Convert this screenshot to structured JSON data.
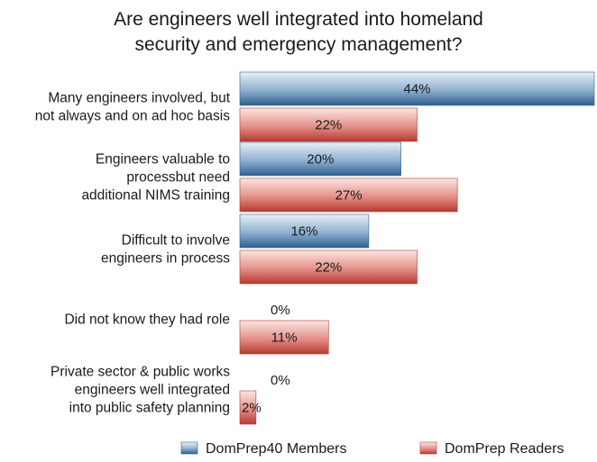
{
  "chart_data": {
    "type": "bar",
    "orientation": "horizontal",
    "title": [
      "Are engineers well integrated into homeland",
      "security and emergency management?"
    ],
    "categories": [
      [
        "Many engineers involved, but",
        "not always and on ad hoc basis"
      ],
      [
        "Engineers valuable to",
        "processbut need",
        "additional NIMS training"
      ],
      [
        "Difficult to involve",
        "engineers in process"
      ],
      [
        "Did not know they had role"
      ],
      [
        "Private sector & public works",
        "engineers well integrated",
        "into public safety planning"
      ]
    ],
    "series": [
      {
        "name": "DomPrep40 Members",
        "values": [
          44,
          20,
          16,
          0,
          0
        ],
        "color": "#3f6f9f",
        "labels": [
          "44%",
          "20%",
          "16%",
          "0%",
          "0%"
        ]
      },
      {
        "name": "DomPrep Readers",
        "values": [
          22,
          27,
          22,
          11,
          2
        ],
        "color": "#c8463e",
        "labels": [
          "22%",
          "27%",
          "22%",
          "11%",
          "2%"
        ]
      }
    ],
    "xlim": [
      0,
      44
    ],
    "unit": "%",
    "legend": "bottom",
    "grid": false
  }
}
